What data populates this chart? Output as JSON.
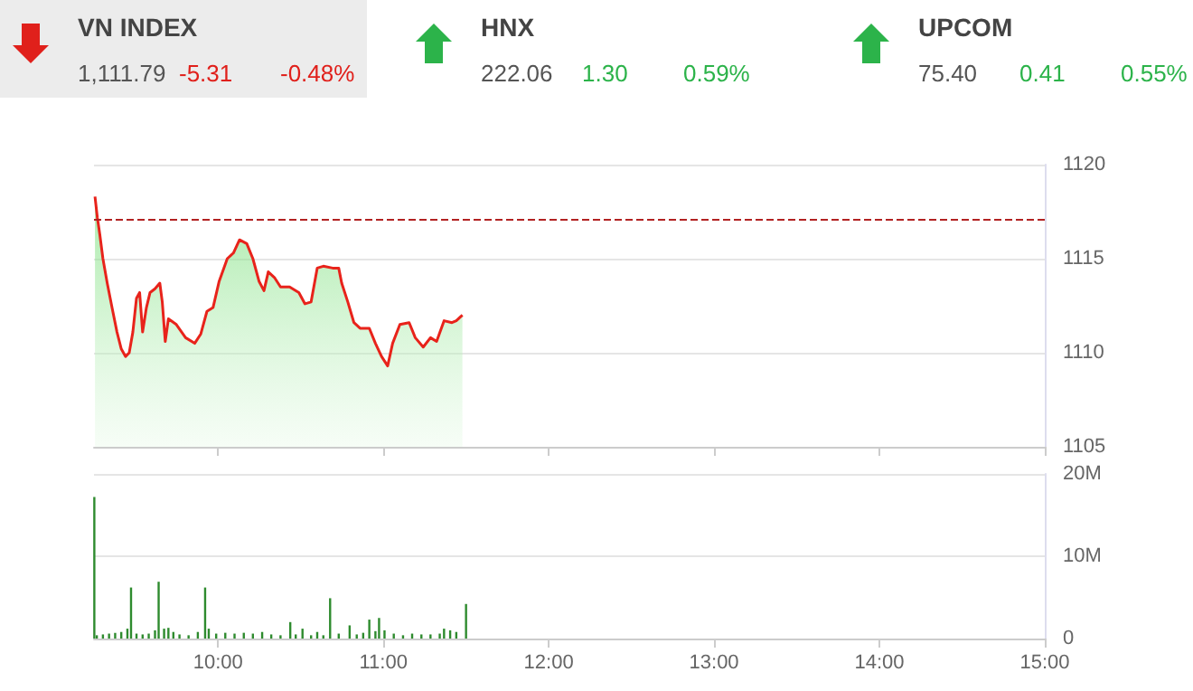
{
  "chart_data": [
    {
      "type": "other",
      "annotations": [
        "VN INDEX",
        "1,111.79",
        "-5.31",
        "-0.48%",
        "HNX",
        "222.06",
        "1.30",
        "0.59%",
        "UPCOM",
        "75.40",
        "0.41",
        "0.55%"
      ],
      "colors": [
        "#e0201b",
        "#2cb34a",
        "#2cb34a"
      ]
    },
    {
      "type": "area",
      "xlim": [
        9.25,
        15
      ],
      "xticks": [
        {
          "value": 10,
          "label": null
        },
        {
          "value": 11,
          "label": null
        },
        {
          "value": 12,
          "label": null
        },
        {
          "value": 13,
          "label": null
        },
        {
          "value": 14,
          "label": null
        },
        {
          "value": 15,
          "label": null
        }
      ],
      "ylim": [
        1105,
        1120
      ],
      "yticks": [
        1105,
        1110,
        1115,
        1120
      ],
      "tick_labels": "y",
      "grid": "y",
      "marker": "none",
      "line_style": "solid",
      "ref_lines": [
        {
          "axis": "y",
          "value": 1117.1,
          "color": "#b22222",
          "line_style": "dashed"
        }
      ],
      "series": [
        {
          "color": "#e8231b",
          "x": [
            9.256,
            9.27,
            9.285,
            9.304,
            9.33,
            9.359,
            9.389,
            9.415,
            9.441,
            9.463,
            9.485,
            9.507,
            9.526,
            9.544,
            9.567,
            9.589,
            9.619,
            9.648,
            9.663,
            9.681,
            9.7,
            9.748,
            9.804,
            9.859,
            9.896,
            9.933,
            9.97,
            10.007,
            10.056,
            10.093,
            10.13,
            10.174,
            10.211,
            10.248,
            10.278,
            10.304,
            10.341,
            10.378,
            10.433,
            10.489,
            10.526,
            10.563,
            10.6,
            10.637,
            10.693,
            10.73,
            10.748,
            10.785,
            10.822,
            10.859,
            10.915,
            10.952,
            10.989,
            11.026,
            11.056,
            11.1,
            11.156,
            11.193,
            11.241,
            11.285,
            11.322,
            11.367,
            11.415,
            11.441,
            11.478
          ],
          "values": [
            1118.3,
            1117.2,
            1116.3,
            1115.0,
            1113.7,
            1112.4,
            1111.1,
            1110.2,
            1109.8,
            1110.0,
            1111.1,
            1112.9,
            1113.2,
            1111.1,
            1112.4,
            1113.2,
            1113.4,
            1113.7,
            1112.7,
            1110.6,
            1111.8,
            1111.5,
            1110.8,
            1110.5,
            1111.0,
            1112.2,
            1112.4,
            1113.8,
            1115.0,
            1115.3,
            1116.0,
            1115.8,
            1115.0,
            1113.8,
            1113.3,
            1114.3,
            1114.0,
            1113.5,
            1113.5,
            1113.2,
            1112.6,
            1112.7,
            1114.5,
            1114.6,
            1114.5,
            1114.5,
            1113.7,
            1112.7,
            1111.6,
            1111.3,
            1111.3,
            1110.5,
            1109.8,
            1109.3,
            1110.5,
            1111.5,
            1111.6,
            1110.8,
            1110.3,
            1110.8,
            1110.6,
            1111.7,
            1111.6,
            1111.7,
            1112.0
          ]
        }
      ]
    },
    {
      "type": "bar",
      "xlim": [
        9.25,
        15
      ],
      "xticks": [
        {
          "value": 10,
          "label": "10:00"
        },
        {
          "value": 11,
          "label": "11:00"
        },
        {
          "value": 12,
          "label": "12:00"
        },
        {
          "value": 13,
          "label": "13:00"
        },
        {
          "value": 14,
          "label": "14:00"
        },
        {
          "value": 15,
          "label": "15:00"
        }
      ],
      "ylim": [
        0,
        20
      ],
      "yticks": [
        {
          "value": 0,
          "label": "0"
        },
        {
          "value": 10,
          "label": "10M"
        },
        {
          "value": 20,
          "label": "20M"
        }
      ],
      "grid": "y",
      "series": [
        {
          "color": "#2e8b2e",
          "x": [
            9.252,
            9.267,
            9.304,
            9.341,
            9.378,
            9.415,
            9.452,
            9.474,
            9.507,
            9.544,
            9.581,
            9.619,
            9.641,
            9.674,
            9.7,
            9.73,
            9.767,
            9.822,
            9.878,
            9.922,
            9.944,
            9.989,
            10.044,
            10.1,
            10.156,
            10.211,
            10.267,
            10.322,
            10.378,
            10.437,
            10.47,
            10.511,
            10.563,
            10.6,
            10.637,
            10.678,
            10.73,
            10.796,
            10.839,
            10.878,
            10.915,
            10.952,
            10.974,
            11.007,
            11.063,
            11.119,
            11.174,
            11.23,
            11.285,
            11.341,
            11.367,
            11.404,
            11.441,
            11.5
          ],
          "values": [
            17.2,
            0.4,
            0.5,
            0.6,
            0.7,
            0.8,
            1.2,
            6.2,
            0.6,
            0.5,
            0.6,
            1.0,
            6.9,
            1.2,
            1.3,
            0.8,
            0.5,
            0.4,
            0.8,
            6.2,
            1.2,
            0.6,
            0.7,
            0.6,
            0.7,
            0.6,
            0.8,
            0.5,
            0.4,
            2.0,
            0.5,
            1.2,
            0.4,
            0.8,
            0.4,
            4.9,
            0.6,
            1.6,
            0.5,
            0.7,
            2.3,
            0.9,
            2.5,
            1.0,
            0.6,
            0.4,
            0.6,
            0.5,
            0.5,
            0.6,
            1.2,
            1.0,
            0.8,
            4.2
          ]
        }
      ]
    }
  ]
}
